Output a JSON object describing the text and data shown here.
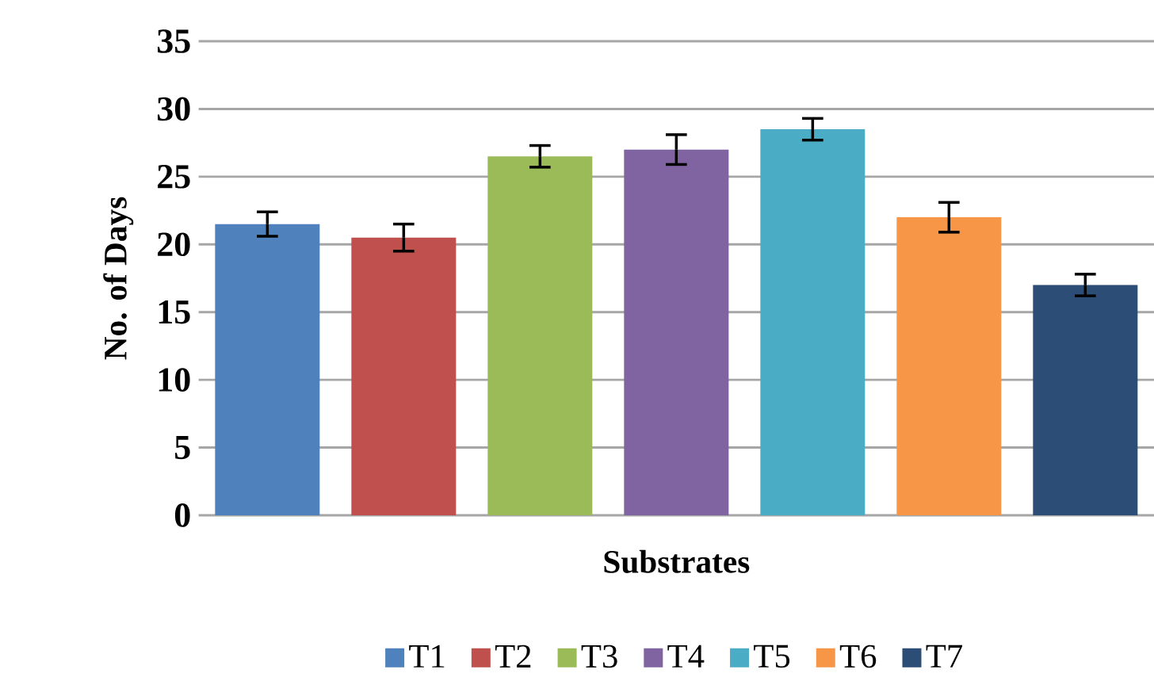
{
  "chart_data": {
    "type": "bar",
    "xlabel": "Substrates",
    "ylabel": "No. of Days",
    "categories": [
      null
    ],
    "series": [
      {
        "name": "T1",
        "color": "#4f81bd",
        "values": [
          21.5
        ],
        "errors": [
          0.9
        ]
      },
      {
        "name": "T2",
        "color": "#c0504d",
        "values": [
          20.5
        ],
        "errors": [
          1.0
        ]
      },
      {
        "name": "T3",
        "color": "#9bbb59",
        "values": [
          26.5
        ],
        "errors": [
          0.8
        ]
      },
      {
        "name": "T4",
        "color": "#8064a2",
        "values": [
          27
        ],
        "errors": [
          1.1
        ]
      },
      {
        "name": "T5",
        "color": "#4bacc6",
        "values": [
          28.5
        ],
        "errors": [
          0.8
        ]
      },
      {
        "name": "T6",
        "color": "#f79646",
        "values": [
          22
        ],
        "errors": [
          1.1
        ]
      },
      {
        "name": "T7",
        "color": "#2c4d75",
        "values": [
          17
        ],
        "errors": [
          0.8
        ]
      }
    ],
    "ylim": [
      0,
      35
    ],
    "yticks": [
      0,
      5,
      10,
      15,
      20,
      25,
      30,
      35
    ],
    "grid": "y",
    "legend": "bottom",
    "tick_labels": "y"
  }
}
